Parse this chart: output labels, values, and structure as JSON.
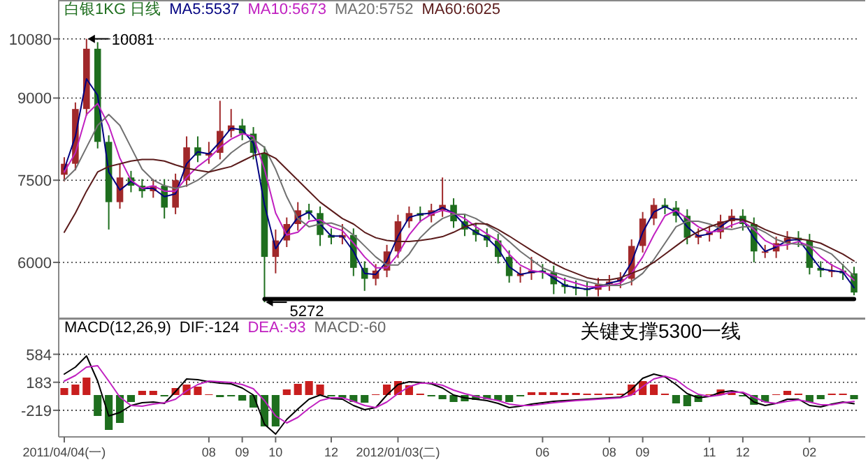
{
  "chart_data": [
    {
      "type": "candlestick",
      "title": "白银1KG 日线",
      "legend": "top left",
      "grid": "y",
      "tick_labels": "y",
      "ylim": [
        4980,
        10790
      ],
      "yticks": [
        6000,
        7500,
        9000,
        10080
      ],
      "categories": [
        null,
        null,
        null,
        null,
        null,
        null,
        null,
        null,
        null,
        null,
        null,
        null,
        null,
        null,
        null,
        null,
        null,
        null,
        null,
        null,
        null,
        null,
        null,
        null,
        null,
        null,
        null,
        null,
        null,
        null,
        null,
        null,
        null,
        null,
        null,
        null,
        null,
        null,
        null,
        null,
        null,
        null,
        null,
        null,
        null,
        null,
        null,
        null,
        null,
        null,
        null,
        null,
        null,
        null,
        null,
        null,
        null,
        null,
        null,
        null,
        null,
        null,
        null,
        null,
        null,
        null,
        null,
        null,
        null,
        null,
        null,
        null
      ],
      "ohlc": [
        [
          7600,
          7920,
          7480,
          7800
        ],
        [
          7800,
          8920,
          7680,
          8800
        ],
        [
          8800,
          10081,
          8680,
          9900
        ],
        [
          9900,
          10020,
          8080,
          8200
        ],
        [
          8200,
          8320,
          6600,
          7100
        ],
        [
          7100,
          7800,
          6980,
          7550
        ],
        [
          7550,
          7670,
          7280,
          7400
        ],
        [
          7400,
          7520,
          7180,
          7300
        ],
        [
          7300,
          7520,
          7180,
          7400
        ],
        [
          7400,
          7520,
          6800,
          7000
        ],
        [
          7000,
          7620,
          6880,
          7500
        ],
        [
          7500,
          8300,
          7380,
          8100
        ],
        [
          8100,
          8300,
          7830,
          7950
        ],
        [
          7950,
          8200,
          7800,
          8000
        ],
        [
          8000,
          8950,
          7880,
          8400
        ],
        [
          8400,
          8800,
          8280,
          8500
        ],
        [
          8500,
          8620,
          8230,
          8350
        ],
        [
          8350,
          8470,
          7880,
          8000
        ],
        [
          8000,
          8120,
          5272,
          6100
        ],
        [
          6100,
          6600,
          5800,
          6400
        ],
        [
          6400,
          6820,
          6280,
          6700
        ],
        [
          6700,
          7100,
          6580,
          6950
        ],
        [
          6950,
          7070,
          6780,
          6900
        ],
        [
          6900,
          7020,
          6300,
          6500
        ],
        [
          6500,
          6620,
          6330,
          6450
        ],
        [
          6450,
          6700,
          6330,
          6500
        ],
        [
          6500,
          6620,
          5750,
          5900
        ],
        [
          5900,
          6020,
          5480,
          5700
        ],
        [
          5700,
          5970,
          5580,
          5850
        ],
        [
          5850,
          6320,
          5730,
          6200
        ],
        [
          6200,
          6870,
          6080,
          6750
        ],
        [
          6750,
          7020,
          6630,
          6900
        ],
        [
          6900,
          7020,
          6730,
          6850
        ],
        [
          6850,
          7070,
          6730,
          6950
        ],
        [
          6950,
          7550,
          6830,
          7050
        ],
        [
          7050,
          7170,
          6630,
          6750
        ],
        [
          6750,
          6870,
          6480,
          6600
        ],
        [
          6600,
          6720,
          6380,
          6500
        ],
        [
          6500,
          6620,
          6280,
          6400
        ],
        [
          6400,
          6520,
          5980,
          6100
        ],
        [
          6100,
          6220,
          5630,
          5750
        ],
        [
          5750,
          5920,
          5630,
          5800
        ],
        [
          5800,
          6100,
          5680,
          5850
        ],
        [
          5850,
          5970,
          5700,
          5820
        ],
        [
          5820,
          5940,
          5420,
          5600
        ],
        [
          5600,
          5720,
          5430,
          5550
        ],
        [
          5550,
          5670,
          5400,
          5520
        ],
        [
          5520,
          5640,
          5380,
          5500
        ],
        [
          5500,
          5720,
          5380,
          5600
        ],
        [
          5600,
          5770,
          5480,
          5650
        ],
        [
          5650,
          5820,
          5530,
          5700
        ],
        [
          5700,
          6420,
          5580,
          6300
        ],
        [
          6300,
          6920,
          6180,
          6800
        ],
        [
          6800,
          7170,
          6680,
          7050
        ],
        [
          7050,
          7170,
          6880,
          7000
        ],
        [
          7000,
          7120,
          6730,
          6850
        ],
        [
          6850,
          6970,
          6330,
          6450
        ],
        [
          6450,
          6620,
          6330,
          6500
        ],
        [
          6500,
          6670,
          6380,
          6550
        ],
        [
          6550,
          6870,
          6430,
          6750
        ],
        [
          6750,
          6970,
          6630,
          6850
        ],
        [
          6850,
          6970,
          6580,
          6700
        ],
        [
          6700,
          6820,
          6000,
          6200
        ],
        [
          6200,
          6320,
          6080,
          6200
        ],
        [
          6200,
          6470,
          6080,
          6350
        ],
        [
          6350,
          6570,
          6230,
          6450
        ],
        [
          6450,
          6570,
          6280,
          6400
        ],
        [
          6400,
          6520,
          5780,
          5900
        ],
        [
          5900,
          6020,
          5730,
          5850
        ],
        [
          5850,
          5970,
          5730,
          5850
        ],
        [
          5850,
          5970,
          5680,
          5800
        ],
        [
          5800,
          5920,
          5400,
          5450
        ]
      ],
      "colors": [
        "#a0282a",
        "#a0282a",
        "#a0282a",
        "#1e6e1e",
        "#1e6e1e",
        "#a0282a",
        "#1e6e1e",
        "#1e6e1e",
        "#a0282a",
        "#1e6e1e",
        "#a0282a",
        "#a0282a",
        "#1e6e1e",
        "#a0282a",
        "#a0282a",
        "#a0282a",
        "#1e6e1e",
        "#1e6e1e",
        "#1e6e1e",
        "#a0282a",
        "#a0282a",
        "#a0282a",
        "#1e6e1e",
        "#1e6e1e",
        "#1e6e1e",
        "#a0282a",
        "#1e6e1e",
        "#1e6e1e",
        "#a0282a",
        "#a0282a",
        "#a0282a",
        "#a0282a",
        "#1e6e1e",
        "#a0282a",
        "#a0282a",
        "#1e6e1e",
        "#1e6e1e",
        "#1e6e1e",
        "#1e6e1e",
        "#1e6e1e",
        "#1e6e1e",
        "#a0282a",
        "#a0282a",
        "#1e6e1e",
        "#1e6e1e",
        "#1e6e1e",
        "#1e6e1e",
        "#1e6e1e",
        "#a0282a",
        "#a0282a",
        "#a0282a",
        "#a0282a",
        "#a0282a",
        "#a0282a",
        "#1e6e1e",
        "#1e6e1e",
        "#1e6e1e",
        "#a0282a",
        "#a0282a",
        "#a0282a",
        "#a0282a",
        "#1e6e1e",
        "#1e6e1e",
        "#a0282a",
        "#a0282a",
        "#a0282a",
        "#1e6e1e",
        "#1e6e1e",
        "#1e6e1e",
        "#a0282a",
        "#1e6e1e",
        "#1e6e1e"
      ],
      "series": [
        {
          "name": "MA5:5537",
          "type": "line",
          "color": "#000080",
          "values": [
            7700,
            8300,
            9350,
            9050,
            7650,
            7320,
            7480,
            7350,
            7350,
            7200,
            7250,
            7800,
            8020,
            7980,
            8200,
            8450,
            8420,
            8180,
            7050,
            6250,
            6550,
            6820,
            6920,
            6700,
            6480,
            6480,
            6200,
            5800,
            5780,
            6020,
            6480,
            6820,
            6880,
            6900,
            7000,
            6900,
            6680,
            6550,
            6450,
            6250,
            5920,
            5780,
            5820,
            5840,
            5710,
            5580,
            5540,
            5510,
            5550,
            5620,
            5670,
            6000,
            6550,
            6920,
            7020,
            6920,
            6650,
            6480,
            6520,
            6650,
            6800,
            6780,
            6450,
            6200,
            6280,
            6400,
            6420,
            6150,
            5880,
            5850,
            5820,
            5537
          ]
        },
        {
          "name": "MA10:5673",
          "type": "line",
          "color": "#c020c0",
          "values": [
            7650,
            8000,
            8700,
            8900,
            8500,
            7900,
            7500,
            7350,
            7400,
            7300,
            7300,
            7550,
            7750,
            7900,
            8100,
            8250,
            8350,
            8300,
            7700,
            6900,
            6500,
            6550,
            6750,
            6780,
            6650,
            6580,
            6350,
            6100,
            5900,
            5900,
            6150,
            6500,
            6750,
            6880,
            6950,
            6900,
            6800,
            6650,
            6520,
            6400,
            6150,
            5950,
            5850,
            5820,
            5760,
            5680,
            5620,
            5560,
            5550,
            5580,
            5620,
            5800,
            6100,
            6500,
            6850,
            6950,
            6800,
            6650,
            6550,
            6580,
            6680,
            6750,
            6600,
            6400,
            6300,
            6320,
            6380,
            6300,
            6100,
            5950,
            5850,
            5673
          ]
        },
        {
          "name": "MA20:5752",
          "type": "line",
          "color": "#707070",
          "values": [
            7500,
            7700,
            8100,
            8500,
            8700,
            8500,
            8100,
            7700,
            7500,
            7400,
            7350,
            7400,
            7500,
            7650,
            7800,
            8000,
            8150,
            8250,
            8100,
            7700,
            7200,
            6800,
            6650,
            6700,
            6720,
            6650,
            6500,
            6300,
            6100,
            5950,
            5950,
            6150,
            6450,
            6650,
            6800,
            6880,
            6880,
            6800,
            6680,
            6550,
            6380,
            6200,
            6050,
            5900,
            5820,
            5760,
            5700,
            5650,
            5600,
            5580,
            5580,
            5650,
            5800,
            6050,
            6350,
            6650,
            6750,
            6750,
            6700,
            6620,
            6600,
            6650,
            6650,
            6550,
            6420,
            6350,
            6330,
            6300,
            6250,
            6150,
            5950,
            5752
          ]
        },
        {
          "name": "MA60:6025",
          "type": "line",
          "color": "#5a1a1a",
          "values": [
            6550,
            6900,
            7300,
            7650,
            7750,
            7800,
            7850,
            7880,
            7880,
            7850,
            7780,
            7720,
            7680,
            7650,
            7700,
            7750,
            7850,
            7950,
            8000,
            7900,
            7700,
            7500,
            7300,
            7100,
            6950,
            6800,
            6700,
            6550,
            6450,
            6400,
            6380,
            6380,
            6400,
            6430,
            6470,
            6550,
            6650,
            6710,
            6700,
            6600,
            6480,
            6350,
            6220,
            6100,
            5980,
            5880,
            5800,
            5720,
            5680,
            5680,
            5720,
            5800,
            5880,
            6000,
            6150,
            6300,
            6450,
            6560,
            6650,
            6720,
            6780,
            6780,
            6700,
            6600,
            6520,
            6460,
            6430,
            6400,
            6350,
            6250,
            6150,
            6025
          ]
        },
        {
          "type": "line",
          "color": "#000000",
          "values": [
            null,
            null,
            null,
            null,
            null,
            null,
            null,
            null,
            null,
            null,
            null,
            null,
            null,
            null,
            null,
            null,
            null,
            null,
            5330,
            5330,
            5330,
            5330,
            5330,
            5330,
            5330,
            5330,
            5330,
            5330,
            5330,
            5330,
            5330,
            5330,
            5330,
            5330,
            5330,
            5330,
            5330,
            5330,
            5330,
            5330,
            5330,
            5330,
            5330,
            5330,
            5330,
            5330,
            5330,
            5330,
            5330,
            5330,
            5330,
            5330,
            5330,
            5330,
            5330,
            5330,
            5330,
            5330,
            5330,
            5330,
            5330,
            5330,
            5330,
            5330,
            5330,
            5330,
            5330,
            5330,
            5330,
            5330,
            5330,
            5330
          ]
        }
      ],
      "annotations": [
        "10081",
        "5272"
      ]
    },
    {
      "type": "bar",
      "title": "MACD(12,26,9)",
      "legend": "top left",
      "grid": "y",
      "ylim": [
        -600,
        1100
      ],
      "yticks": [
        584,
        183,
        -219
      ],
      "categories": [
        "2011/04/04(一)",
        null,
        null,
        null,
        null,
        null,
        null,
        null,
        null,
        null,
        null,
        null,
        null,
        "08",
        null,
        null,
        "09",
        null,
        null,
        "10",
        null,
        null,
        null,
        null,
        "12",
        null,
        null,
        null,
        null,
        null,
        "2012/01/03(二)",
        null,
        null,
        null,
        null,
        null,
        null,
        null,
        null,
        null,
        null,
        null,
        null,
        "06",
        null,
        null,
        null,
        null,
        null,
        "08",
        null,
        null,
        "09",
        null,
        null,
        null,
        null,
        null,
        "11",
        null,
        null,
        "12",
        null,
        null,
        null,
        null,
        null,
        "02",
        null,
        null,
        null,
        null
      ],
      "series": [
        {
          "type": "bar",
          "colors": [
            "#c81e1e",
            "#c81e1e",
            "#c81e1e",
            "#1e6e1e",
            "#1e6e1e",
            "#1e6e1e",
            "#1e6e1e",
            "#c81e1e",
            "#c81e1e",
            "#1e6e1e",
            "#c81e1e",
            "#c81e1e",
            "#c81e1e",
            "#c81e1e",
            "#1e6e1e",
            "#1e6e1e",
            "#1e6e1e",
            "#1e6e1e",
            "#1e6e1e",
            "#1e6e1e",
            "#c81e1e",
            "#c81e1e",
            "#c81e1e",
            "#c81e1e",
            "#1e6e1e",
            "#1e6e1e",
            "#1e6e1e",
            "#1e6e1e",
            "#c81e1e",
            "#c81e1e",
            "#c81e1e",
            "#c81e1e",
            "#c81e1e",
            "#1e6e1e",
            "#1e6e1e",
            "#1e6e1e",
            "#1e6e1e",
            "#1e6e1e",
            "#1e6e1e",
            "#1e6e1e",
            "#1e6e1e",
            "#1e6e1e",
            "#c81e1e",
            "#c81e1e",
            "#c81e1e",
            "#c81e1e",
            "#c81e1e",
            "#c81e1e",
            "#c81e1e",
            "#c81e1e",
            "#c81e1e",
            "#c81e1e",
            "#c81e1e",
            "#c81e1e",
            "#c81e1e",
            "#1e6e1e",
            "#1e6e1e",
            "#1e6e1e",
            "#c81e1e",
            "#c81e1e",
            "#c81e1e",
            "#1e6e1e",
            "#1e6e1e",
            "#1e6e1e",
            "#c81e1e",
            "#c81e1e",
            "#c81e1e",
            "#1e6e1e",
            "#1e6e1e",
            "#c81e1e",
            "#c81e1e",
            "#1e6e1e"
          ],
          "values": [
            100,
            150,
            250,
            -300,
            -500,
            -400,
            -100,
            60,
            60,
            -20,
            100,
            150,
            120,
            10,
            -30,
            -20,
            -80,
            -180,
            -450,
            -450,
            80,
            160,
            200,
            150,
            -20,
            -40,
            -100,
            -110,
            10,
            150,
            200,
            140,
            20,
            -20,
            -60,
            -100,
            -90,
            -70,
            -60,
            -80,
            -100,
            -20,
            40,
            40,
            40,
            30,
            30,
            20,
            20,
            20,
            20,
            150,
            200,
            150,
            20,
            -120,
            -160,
            -100,
            10,
            80,
            40,
            -20,
            -140,
            -100,
            10,
            60,
            20,
            -100,
            -60,
            20,
            20,
            -60
          ]
        },
        {
          "name": "DIF:-124",
          "type": "line",
          "color": "#000000",
          "values": [
            300,
            400,
            560,
            200,
            -300,
            -250,
            -150,
            -110,
            -100,
            -120,
            50,
            230,
            220,
            190,
            170,
            160,
            100,
            0,
            -420,
            -560,
            -350,
            -200,
            -60,
            0,
            -50,
            -60,
            -150,
            -210,
            -180,
            0,
            150,
            190,
            180,
            160,
            100,
            0,
            -40,
            -60,
            -80,
            -120,
            -180,
            -160,
            -130,
            -110,
            -90,
            -80,
            -70,
            -60,
            -50,
            -40,
            -30,
            80,
            240,
            300,
            260,
            150,
            20,
            -40,
            -20,
            40,
            60,
            30,
            -100,
            -150,
            -120,
            -60,
            -60,
            -150,
            -170,
            -130,
            -100,
            -124
          ]
        },
        {
          "name": "DEA:-93",
          "type": "line",
          "color": "#c020c0",
          "values": [
            200,
            280,
            400,
            420,
            200,
            -30,
            -150,
            -160,
            -130,
            -110,
            -60,
            60,
            150,
            200,
            190,
            180,
            150,
            90,
            -80,
            -300,
            -400,
            -320,
            -190,
            -80,
            -40,
            -40,
            -90,
            -150,
            -180,
            -100,
            20,
            120,
            170,
            170,
            140,
            70,
            20,
            -20,
            -50,
            -80,
            -130,
            -150,
            -150,
            -130,
            -110,
            -95,
            -80,
            -70,
            -60,
            -50,
            -40,
            0,
            120,
            230,
            270,
            220,
            100,
            10,
            -20,
            0,
            40,
            40,
            -30,
            -100,
            -120,
            -90,
            -70,
            -100,
            -140,
            -140,
            -110,
            -93
          ]
        }
      ],
      "annotations": [
        "MACD:-60",
        "关键支撑5300一线"
      ]
    }
  ]
}
